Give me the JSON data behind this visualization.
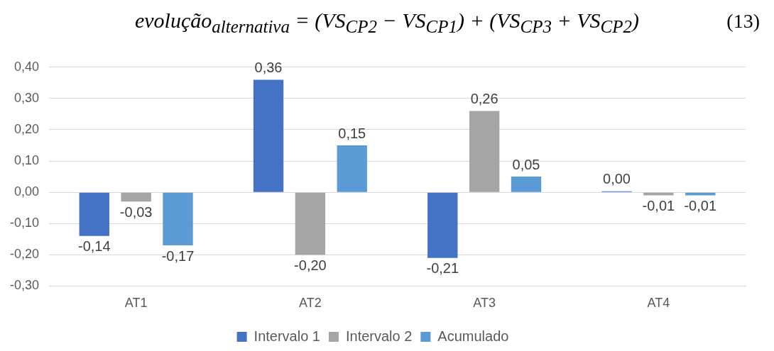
{
  "chart_data": {
    "type": "bar",
    "title": "evolução$_{alternativa}$ = (VS$_{CP2}$ − VS$_{CP1}$) + (VS$_{CP3}$ + VS$_{CP2}$)",
    "annotations": [
      "(13)"
    ],
    "categories": [
      "AT1",
      "AT2",
      "AT3",
      "AT4"
    ],
    "series": [
      {
        "name": "Intervalo 1",
        "color": "#4472c4",
        "values": [
          -0.14,
          0.36,
          -0.21,
          0.003
        ],
        "value_labels": [
          "-0,14",
          "0,36",
          "-0,21",
          "0,00"
        ]
      },
      {
        "name": "Intervalo 2",
        "color": "#a5a5a5",
        "values": [
          -0.03,
          -0.2,
          0.26,
          -0.01
        ],
        "value_labels": [
          "-0,03",
          "-0,20",
          "0,26",
          "-0,01"
        ]
      },
      {
        "name": "Acumulado",
        "color": "#5b9bd5",
        "values": [
          -0.17,
          0.15,
          0.05,
          -0.01
        ],
        "value_labels": [
          "-0,17",
          "0,15",
          "0,05",
          "-0,01"
        ]
      }
    ],
    "ylim": [
      -0.3,
      0.4
    ],
    "yticks": [
      {
        "value": -0.3,
        "label": "-0,30"
      },
      {
        "value": -0.2,
        "label": "-0,20"
      },
      {
        "value": -0.1,
        "label": "-0,10"
      },
      {
        "value": 0,
        "label": "0,00"
      },
      {
        "value": 0.1,
        "label": "0,10"
      },
      {
        "value": 0.2,
        "label": "0,20"
      },
      {
        "value": 0.3,
        "label": "0,30"
      },
      {
        "value": 0.4,
        "label": "0,40"
      }
    ],
    "grid": "y",
    "legend": "bottom"
  }
}
